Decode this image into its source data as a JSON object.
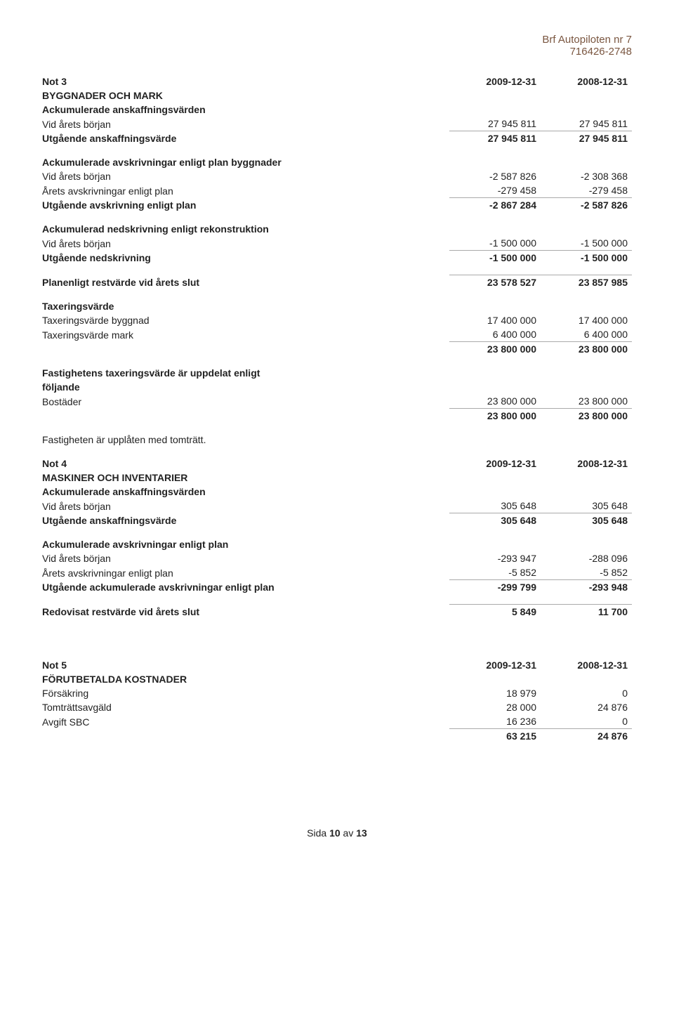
{
  "header": {
    "org": "Brf Autopiloten nr 7",
    "orgnum": "716426-2748"
  },
  "not3": {
    "note_label": "Not 3",
    "dates": [
      "2009-12-31",
      "2008-12-31"
    ],
    "section1_title": "BYGGNADER OCH MARK",
    "section1_sub": "Ackumulerade anskaffningsvärden",
    "r1": {
      "l": "Vid årets början",
      "v1": "27 945 811",
      "v2": "27 945 811"
    },
    "r2": {
      "l": "Utgående anskaffningsvärde",
      "v1": "27 945 811",
      "v2": "27 945 811"
    },
    "section2_title": "Ackumulerade avskrivningar enligt plan byggnader",
    "r3": {
      "l": "Vid årets början",
      "v1": "-2 587 826",
      "v2": "-2 308 368"
    },
    "r4": {
      "l": "Årets avskrivningar enligt plan",
      "v1": "-279 458",
      "v2": "-279 458"
    },
    "r5": {
      "l": "Utgående avskrivning enligt plan",
      "v1": "-2 867 284",
      "v2": "-2 587 826"
    },
    "section3_title": "Ackumulerad nedskrivning enligt rekonstruktion",
    "r6": {
      "l": "Vid årets början",
      "v1": "-1 500 000",
      "v2": "-1 500 000"
    },
    "r7": {
      "l": "Utgående nedskrivning",
      "v1": "-1 500 000",
      "v2": "-1 500 000"
    },
    "r8": {
      "l": "Planenligt restvärde vid årets slut",
      "v1": "23 578 527",
      "v2": "23 857 985"
    },
    "section4_title": "Taxeringsvärde",
    "r9": {
      "l": "Taxeringsvärde byggnad",
      "v1": "17 400 000",
      "v2": "17 400 000"
    },
    "r10": {
      "l": "Taxeringsvärde mark",
      "v1": "6 400 000",
      "v2": "6 400 000"
    },
    "r11": {
      "v1": "23 800 000",
      "v2": "23 800 000"
    },
    "section5_title1": "Fastighetens taxeringsvärde är uppdelat enligt",
    "section5_title2": "följande",
    "r12": {
      "l": "Bostäder",
      "v1": "23 800 000",
      "v2": "23 800 000"
    },
    "r13": {
      "v1": "23 800 000",
      "v2": "23 800 000"
    },
    "footnote": "Fastigheten är upplåten med tomträtt."
  },
  "not4": {
    "note_label": "Not 4",
    "dates": [
      "2009-12-31",
      "2008-12-31"
    ],
    "section1_title": "MASKINER OCH INVENTARIER",
    "section1_sub": "Ackumulerade anskaffningsvärden",
    "r1": {
      "l": "Vid årets början",
      "v1": "305 648",
      "v2": "305 648"
    },
    "r2": {
      "l": "Utgående anskaffningsvärde",
      "v1": "305 648",
      "v2": "305 648"
    },
    "section2_title": "Ackumulerade avskrivningar enligt plan",
    "r3": {
      "l": "Vid årets början",
      "v1": "-293 947",
      "v2": "-288 096"
    },
    "r4": {
      "l": "Årets avskrivningar enligt plan",
      "v1": "-5 852",
      "v2": "-5 852"
    },
    "r5": {
      "l": "Utgående ackumulerade avskrivningar enligt plan",
      "v1": "-299 799",
      "v2": "-293 948"
    },
    "r6": {
      "l": "Redovisat restvärde vid årets slut",
      "v1": "5 849",
      "v2": "11 700"
    }
  },
  "not5": {
    "note_label": "Not 5",
    "dates": [
      "2009-12-31",
      "2008-12-31"
    ],
    "section1_title": "FÖRUTBETALDA KOSTNADER",
    "r1": {
      "l": "Försäkring",
      "v1": "18 979",
      "v2": "0"
    },
    "r2": {
      "l": "Tomträttsavgäld",
      "v1": "28 000",
      "v2": "24 876"
    },
    "r3": {
      "l": "Avgift SBC",
      "v1": "16 236",
      "v2": "0"
    },
    "r4": {
      "v1": "63 215",
      "v2": "24 876"
    }
  },
  "footer": {
    "page_prefix": "Sida ",
    "page_num": "10",
    "page_mid": " av ",
    "page_total": "13"
  }
}
